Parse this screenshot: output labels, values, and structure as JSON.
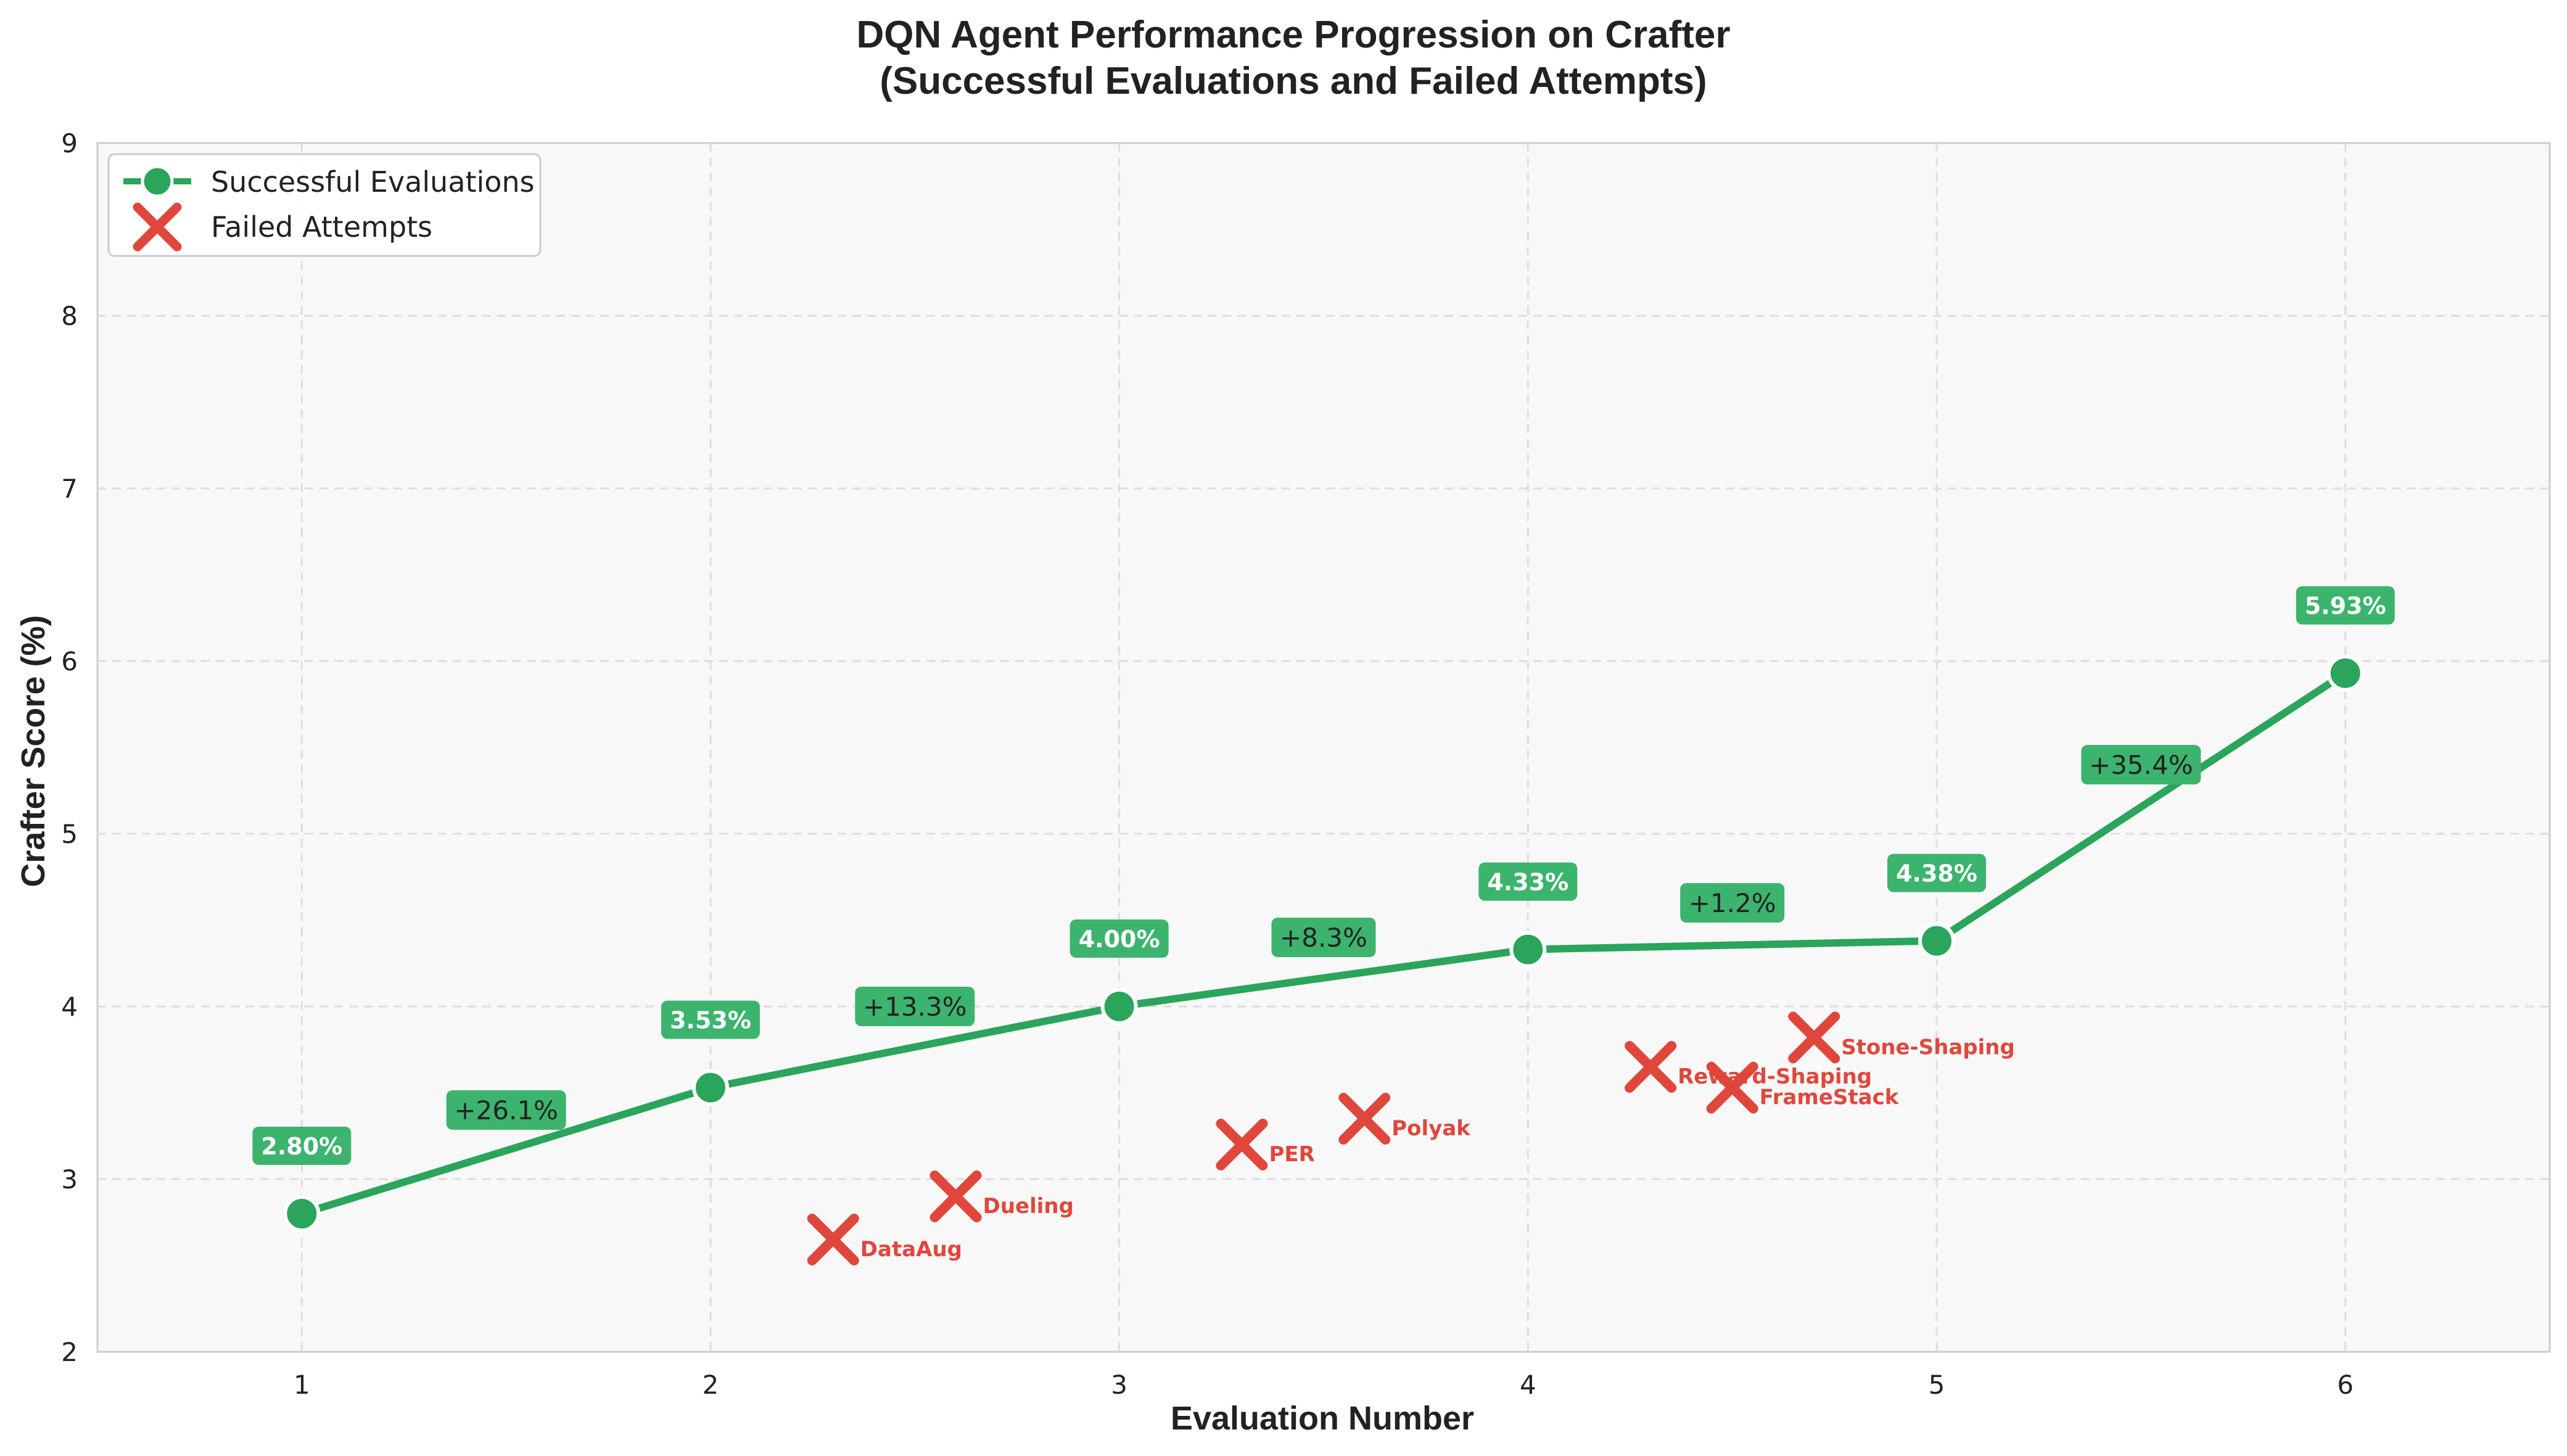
{
  "chart_data": {
    "type": "line",
    "title_line1": "DQN Agent Performance Progression on Crafter",
    "title_line2": "(Successful Evaluations and Failed Attempts)",
    "xlabel": "Evaluation Number",
    "ylabel": "Crafter Score (%)",
    "xlim": [
      0.5,
      6.5
    ],
    "ylim": [
      2,
      9
    ],
    "xticks": [
      1,
      2,
      3,
      4,
      5,
      6
    ],
    "yticks": [
      2,
      3,
      4,
      5,
      6,
      7,
      8,
      9
    ],
    "grid": true,
    "legend_position": "top-left",
    "legend": {
      "success_label": "Successful Evaluations",
      "failed_label": "Failed Attempts"
    },
    "colors": {
      "success": "#2aa55b",
      "value_box": "#3cb46e",
      "failed": "#e0473c",
      "plot_bg": "#f8f8f8"
    },
    "series": [
      {
        "name": "Successful Evaluations",
        "x": [
          1,
          2,
          3,
          4,
          5,
          6
        ],
        "y": [
          2.8,
          3.53,
          4.0,
          4.33,
          4.38,
          5.93
        ],
        "value_labels": [
          "2.80%",
          "3.53%",
          "4.00%",
          "4.33%",
          "4.38%",
          "5.93%"
        ]
      },
      {
        "name": "Failed Attempts",
        "points": [
          {
            "x": 2.3,
            "y": 2.65,
            "label": "DataAug"
          },
          {
            "x": 2.6,
            "y": 2.9,
            "label": "Dueling"
          },
          {
            "x": 3.3,
            "y": 3.2,
            "label": "PER"
          },
          {
            "x": 3.6,
            "y": 3.35,
            "label": "Polyak"
          },
          {
            "x": 4.3,
            "y": 3.65,
            "label": "Reward-Shaping"
          },
          {
            "x": 4.5,
            "y": 3.53,
            "label": "FrameStack"
          },
          {
            "x": 4.7,
            "y": 3.82,
            "label": "Stone-Shaping"
          }
        ]
      }
    ],
    "improvements": [
      {
        "x": 1.5,
        "y": 3.4,
        "label": "+26.1%"
      },
      {
        "x": 2.5,
        "y": 4.0,
        "label": "+13.3%"
      },
      {
        "x": 3.5,
        "y": 4.4,
        "label": "+8.3%"
      },
      {
        "x": 4.5,
        "y": 4.6,
        "label": "+1.2%"
      },
      {
        "x": 5.5,
        "y": 5.4,
        "label": "+35.4%"
      }
    ]
  }
}
